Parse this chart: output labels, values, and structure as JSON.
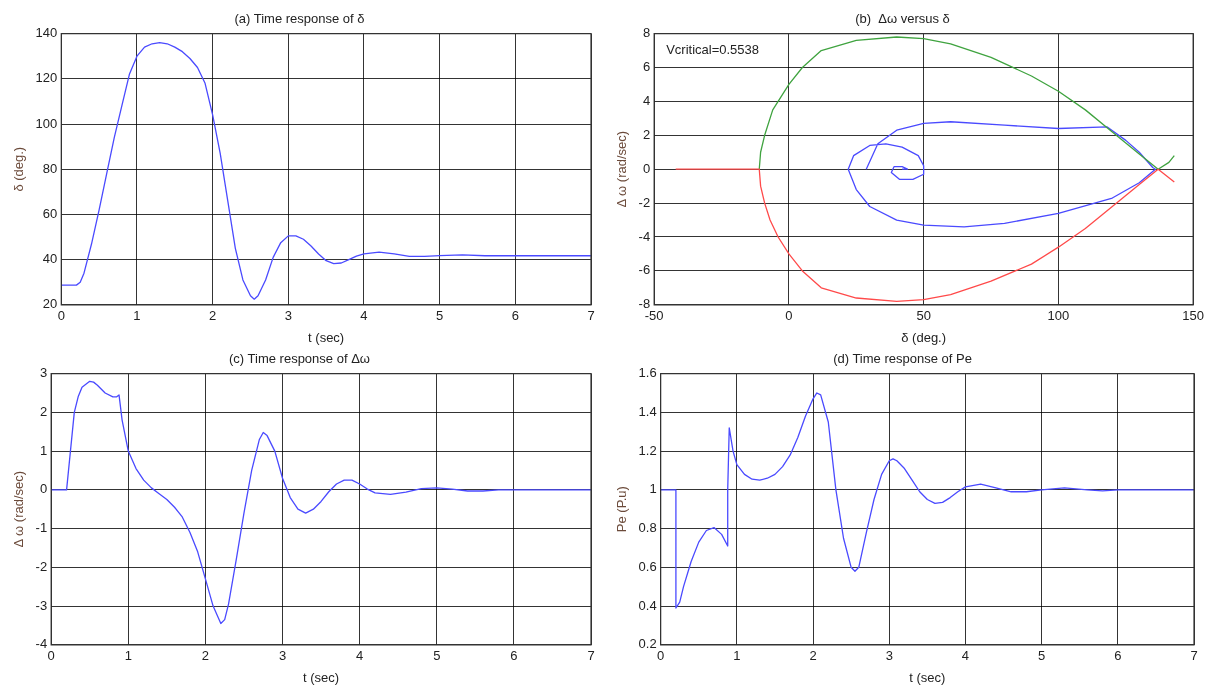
{
  "chart_data": [
    {
      "type": "line",
      "title": "(a) Time response of δ",
      "xlabel": "t (sec)",
      "ylabel": "δ (deg.)",
      "xlim": [
        0,
        7
      ],
      "ylim": [
        20,
        140
      ],
      "xticks": [
        0,
        1,
        2,
        3,
        4,
        5,
        6,
        7
      ],
      "yticks": [
        20,
        40,
        60,
        80,
        100,
        120,
        140
      ],
      "grid": true,
      "series": [
        {
          "color": "#4a4aff",
          "x": [
            0,
            0.2,
            0.25,
            0.3,
            0.4,
            0.5,
            0.6,
            0.7,
            0.8,
            0.9,
            1.0,
            1.1,
            1.2,
            1.3,
            1.4,
            1.5,
            1.6,
            1.7,
            1.8,
            1.9,
            2.0,
            2.1,
            2.2,
            2.3,
            2.4,
            2.5,
            2.55,
            2.6,
            2.7,
            2.8,
            2.9,
            3.0,
            3.1,
            3.2,
            3.3,
            3.4,
            3.5,
            3.6,
            3.7,
            3.8,
            3.9,
            4.0,
            4.2,
            4.4,
            4.6,
            4.8,
            5.0,
            5.3,
            5.6,
            6.0,
            7.0
          ],
          "values": [
            28.7,
            28.7,
            30,
            34,
            47,
            62,
            78,
            94,
            108,
            122,
            130,
            134,
            135.5,
            136,
            135.5,
            134,
            132,
            129,
            125,
            118,
            104,
            87,
            66,
            45,
            31,
            24,
            22.5,
            24,
            31,
            41,
            47.5,
            50.5,
            50.5,
            49,
            46,
            42.5,
            39.5,
            38.2,
            38.5,
            40,
            41.5,
            42.5,
            43.3,
            42.5,
            41.4,
            41.4,
            41.8,
            42.1,
            41.7,
            41.7,
            41.7
          ]
        }
      ]
    },
    {
      "type": "line",
      "title": "(b)  Δω versus δ",
      "xlabel": "δ (deg.)",
      "ylabel": "Δ ω (rad/sec)",
      "xlim": [
        -50,
        150
      ],
      "ylim": [
        -8,
        8
      ],
      "xticks": [
        -50,
        0,
        50,
        100,
        150
      ],
      "yticks": [
        -8,
        -6,
        -4,
        -2,
        0,
        2,
        4,
        6,
        8
      ],
      "grid": true,
      "annotations": [
        "Vcritical=0.5538"
      ],
      "series": [
        {
          "color": "#ff4a4a",
          "x": [
            -42,
            -11,
            -10.5,
            -9,
            -7,
            -4,
            0,
            5,
            12,
            25,
            40,
            50,
            60,
            75,
            90,
            100,
            110,
            120,
            130,
            137,
            141,
            143
          ],
          "values": [
            0,
            0,
            -1,
            -2,
            -3,
            -4,
            -5,
            -6,
            -7,
            -7.6,
            -7.8,
            -7.7,
            -7.4,
            -6.6,
            -5.6,
            -4.6,
            -3.5,
            -2.2,
            -0.9,
            0,
            -0.5,
            -0.75
          ]
        },
        {
          "color": "#3fa33f",
          "x": [
            -11,
            -10.5,
            -9,
            -6,
            -4,
            0,
            5,
            12,
            25,
            40,
            50,
            60,
            75,
            90,
            100,
            110,
            120,
            130,
            137,
            141,
            143
          ],
          "values": [
            0,
            1,
            2,
            3.5,
            4,
            5,
            6,
            7,
            7.6,
            7.8,
            7.7,
            7.4,
            6.6,
            5.5,
            4.6,
            3.5,
            2.2,
            0.9,
            0,
            0.4,
            0.8
          ]
        },
        {
          "color": "#4a4aff",
          "x": [
            28.7,
            33,
            40,
            50,
            60,
            80,
            100,
            118,
            125,
            130,
            135,
            136,
            130,
            120,
            100,
            80,
            65,
            50,
            40,
            30,
            25,
            22,
            24,
            30,
            36,
            42,
            48,
            50,
            50,
            46,
            41,
            38,
            39,
            42,
            44,
            42
          ],
          "values": [
            0,
            1.5,
            2.3,
            2.7,
            2.8,
            2.6,
            2.4,
            2.5,
            1.7,
            1,
            0.1,
            0,
            -0.8,
            -1.7,
            -2.6,
            -3.2,
            -3.4,
            -3.3,
            -3.0,
            -2.2,
            -1.2,
            0,
            0.8,
            1.4,
            1.5,
            1.3,
            0.8,
            0.2,
            -0.3,
            -0.6,
            -0.6,
            -0.2,
            0.15,
            0.15,
            0,
            0
          ]
        }
      ]
    },
    {
      "type": "line",
      "title": "(c) Time response of Δω",
      "xlabel": "t (sec)",
      "ylabel": "Δ ω (rad/sec)",
      "xlim": [
        0,
        7
      ],
      "ylim": [
        -4,
        3
      ],
      "xticks": [
        0,
        1,
        2,
        3,
        4,
        5,
        6,
        7
      ],
      "yticks": [
        -4,
        -3,
        -2,
        -1,
        0,
        1,
        2,
        3
      ],
      "grid": true,
      "series": [
        {
          "color": "#4a4aff",
          "x": [
            0,
            0.2,
            0.25,
            0.3,
            0.35,
            0.4,
            0.5,
            0.55,
            0.6,
            0.7,
            0.8,
            0.85,
            0.88,
            0.92,
            1.0,
            1.1,
            1.2,
            1.3,
            1.4,
            1.5,
            1.6,
            1.7,
            1.8,
            1.9,
            2.0,
            2.1,
            2.2,
            2.25,
            2.3,
            2.4,
            2.5,
            2.6,
            2.7,
            2.75,
            2.8,
            2.9,
            3.0,
            3.1,
            3.2,
            3.3,
            3.4,
            3.5,
            3.6,
            3.7,
            3.8,
            3.9,
            4.0,
            4.1,
            4.2,
            4.4,
            4.6,
            4.8,
            5.0,
            5.2,
            5.4,
            5.6,
            5.8,
            7.0
          ],
          "values": [
            0,
            0,
            1.0,
            2.0,
            2.4,
            2.65,
            2.8,
            2.78,
            2.7,
            2.5,
            2.4,
            2.4,
            2.45,
            1.8,
            1.0,
            0.55,
            0.25,
            0.05,
            -0.1,
            -0.25,
            -0.45,
            -0.7,
            -1.1,
            -1.6,
            -2.3,
            -3.0,
            -3.45,
            -3.35,
            -2.95,
            -1.8,
            -0.6,
            0.5,
            1.3,
            1.48,
            1.4,
            1.0,
            0.3,
            -0.2,
            -0.5,
            -0.6,
            -0.5,
            -0.3,
            -0.05,
            0.15,
            0.25,
            0.25,
            0.15,
            0.02,
            -0.08,
            -0.12,
            -0.06,
            0.03,
            0.05,
            0.02,
            -0.03,
            -0.03,
            0,
            0
          ]
        }
      ]
    },
    {
      "type": "line",
      "title": "(d) Time response of Pe",
      "xlabel": "t (sec)",
      "ylabel": "Pe (P.u)",
      "xlim": [
        0,
        7
      ],
      "ylim": [
        0.2,
        1.6
      ],
      "xticks": [
        0,
        1,
        2,
        3,
        4,
        5,
        6,
        7
      ],
      "yticks": [
        0.2,
        0.4,
        0.6,
        0.8,
        1,
        1.2,
        1.4,
        1.6
      ],
      "grid": true,
      "series": [
        {
          "color": "#4a4aff",
          "x": [
            0,
            0.2,
            0.2,
            0.25,
            0.3,
            0.4,
            0.5,
            0.6,
            0.7,
            0.8,
            0.88,
            0.88,
            0.9,
            0.95,
            1.0,
            1.1,
            1.2,
            1.3,
            1.4,
            1.5,
            1.6,
            1.7,
            1.8,
            1.9,
            2.0,
            2.05,
            2.1,
            2.2,
            2.3,
            2.4,
            2.5,
            2.55,
            2.6,
            2.7,
            2.8,
            2.9,
            3.0,
            3.05,
            3.1,
            3.2,
            3.3,
            3.4,
            3.5,
            3.6,
            3.7,
            3.8,
            3.9,
            4.0,
            4.2,
            4.4,
            4.6,
            4.8,
            5.0,
            5.3,
            5.6,
            5.8,
            6.0,
            7.0
          ],
          "values": [
            1,
            1,
            0.39,
            0.42,
            0.5,
            0.63,
            0.73,
            0.79,
            0.805,
            0.77,
            0.71,
            1.0,
            1.32,
            1.2,
            1.13,
            1.08,
            1.055,
            1.05,
            1.06,
            1.08,
            1.12,
            1.18,
            1.27,
            1.38,
            1.47,
            1.5,
            1.49,
            1.35,
            1.0,
            0.75,
            0.6,
            0.58,
            0.6,
            0.78,
            0.95,
            1.08,
            1.15,
            1.16,
            1.15,
            1.11,
            1.05,
            0.99,
            0.95,
            0.93,
            0.935,
            0.96,
            0.99,
            1.015,
            1.03,
            1.01,
            0.99,
            0.99,
            1.0,
            1.01,
            1.0,
            0.995,
            1,
            1
          ]
        }
      ]
    }
  ]
}
